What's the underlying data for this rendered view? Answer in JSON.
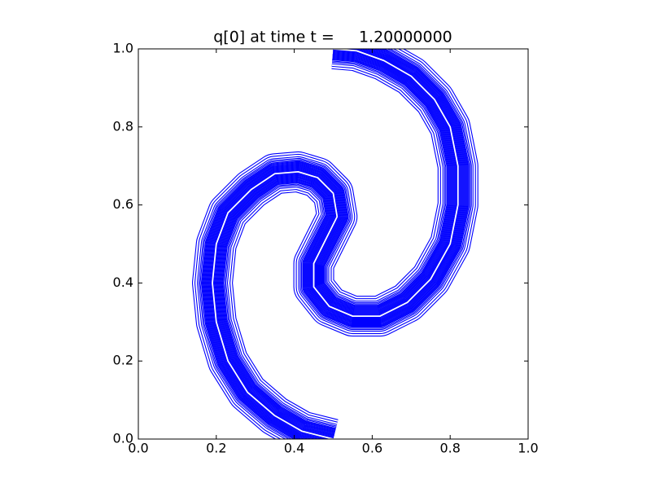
{
  "chart_data": {
    "type": "contour",
    "title": "q[0] at time t =     1.20000000",
    "x": [
      0.5,
      0.42,
      0.35,
      0.28,
      0.23,
      0.2,
      0.19,
      0.2,
      0.23,
      0.29,
      0.35,
      0.41,
      0.46,
      0.5,
      0.51,
      0.48,
      0.45,
      0.45,
      0.49,
      0.55,
      0.62,
      0.69,
      0.75,
      0.8,
      0.82,
      0.82,
      0.8,
      0.76,
      0.7,
      0.63,
      0.56,
      0.5
    ],
    "y": [
      0.0,
      0.02,
      0.06,
      0.12,
      0.2,
      0.3,
      0.4,
      0.5,
      0.58,
      0.64,
      0.68,
      0.685,
      0.67,
      0.63,
      0.57,
      0.51,
      0.45,
      0.39,
      0.34,
      0.315,
      0.315,
      0.35,
      0.41,
      0.5,
      0.6,
      0.7,
      0.8,
      0.87,
      0.93,
      0.97,
      0.995,
      1.0
    ],
    "color": "#0000ff",
    "xlim": [
      0,
      1
    ],
    "ylim": [
      0,
      1
    ],
    "xticks": [
      {
        "value": 0,
        "label": "0.0"
      },
      0.2,
      0.4,
      0.6,
      0.8,
      {
        "value": 1,
        "label": "1.0"
      }
    ],
    "yticks": [
      {
        "value": 0,
        "label": "0.0"
      },
      0.2,
      0.4,
      0.6,
      0.8,
      {
        "value": 1,
        "label": "1.0"
      }
    ]
  }
}
